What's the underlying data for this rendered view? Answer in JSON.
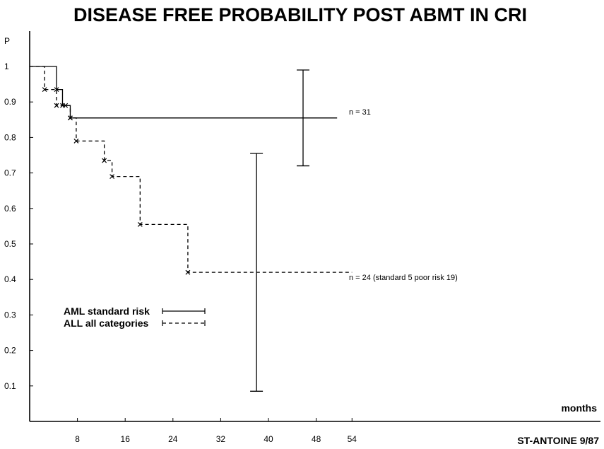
{
  "chart_data": {
    "type": "line",
    "step": true,
    "title": "DISEASE FREE PROBABILITY POST ABMT IN CRI",
    "xlabel": "months",
    "ylabel": "P",
    "xlim": [
      0,
      60
    ],
    "ylim": [
      0,
      1.05
    ],
    "x_ticks": [
      8,
      16,
      24,
      32,
      40,
      48,
      54
    ],
    "y_ticks": [
      {
        "value": 0.1,
        "label": "0.1"
      },
      {
        "value": 0.2,
        "label": "0.2"
      },
      {
        "value": 0.3,
        "label": "0.3"
      },
      {
        "value": 0.4,
        "label": "0.4"
      },
      {
        "value": 0.5,
        "label": "0.5"
      },
      {
        "value": 0.6,
        "label": "0.6"
      },
      {
        "value": 0.7,
        "label": "0.7"
      },
      {
        "value": 0.8,
        "label": "0.8"
      },
      {
        "value": 0.9,
        "label": "0.9"
      },
      {
        "value": 1,
        "label": "1"
      }
    ],
    "series": [
      {
        "name": "AML standard risk",
        "style": "solid",
        "steps": [
          {
            "x": 0,
            "y": 1.0
          },
          {
            "x": 4.5,
            "y": 0.935
          },
          {
            "x": 5.5,
            "y": 0.89
          },
          {
            "x": 6.8,
            "y": 0.855
          },
          {
            "x": 51.5,
            "y": 0.855
          }
        ],
        "events": [
          {
            "x": 4.5,
            "y": 0.935
          },
          {
            "x": 5.5,
            "y": 0.89
          },
          {
            "x": 6.8,
            "y": 0.855
          }
        ],
        "error_bar": {
          "x": 45.8,
          "low": 0.72,
          "high": 0.99
        },
        "annotation": "n = 31"
      },
      {
        "name": "ALL all categories",
        "style": "dashed",
        "steps": [
          {
            "x": 0,
            "y": 1.0
          },
          {
            "x": 2.5,
            "y": 0.935
          },
          {
            "x": 4.5,
            "y": 0.89
          },
          {
            "x": 6.8,
            "y": 0.855
          },
          {
            "x": 7.8,
            "y": 0.79
          },
          {
            "x": 12.5,
            "y": 0.735
          },
          {
            "x": 13.8,
            "y": 0.69
          },
          {
            "x": 18.5,
            "y": 0.555
          },
          {
            "x": 26.5,
            "y": 0.42
          },
          {
            "x": 54,
            "y": 0.42
          }
        ],
        "events": [
          {
            "x": 2.5,
            "y": 0.935
          },
          {
            "x": 4.5,
            "y": 0.89
          },
          {
            "x": 6.0,
            "y": 0.89
          },
          {
            "x": 6.8,
            "y": 0.855
          },
          {
            "x": 7.8,
            "y": 0.79
          },
          {
            "x": 12.5,
            "y": 0.735
          },
          {
            "x": 13.8,
            "y": 0.69
          },
          {
            "x": 18.5,
            "y": 0.555
          },
          {
            "x": 26.5,
            "y": 0.42
          }
        ],
        "error_bar": {
          "x": 38,
          "low": 0.085,
          "high": 0.755
        },
        "annotation": "n = 24 (standard 5 poor risk 19)"
      }
    ],
    "legend": {
      "position": "lower-left"
    },
    "footer": "ST-ANTOINE 9/87"
  }
}
